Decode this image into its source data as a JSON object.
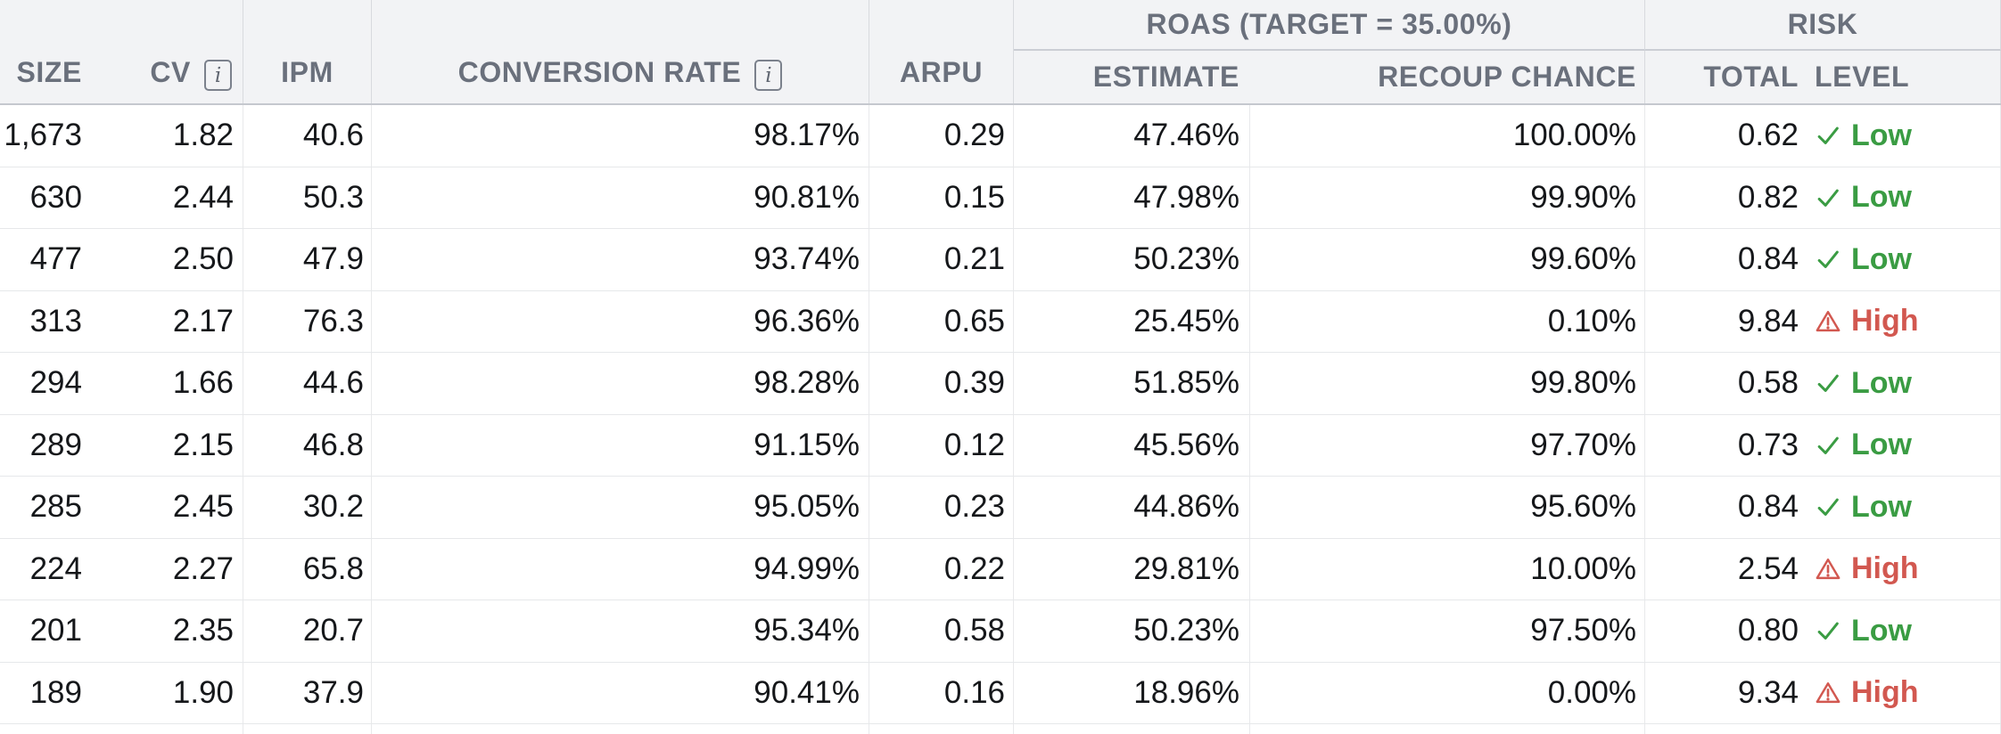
{
  "table": {
    "headers": {
      "size": "SIZE",
      "cv": "CV",
      "ipm": "IPM",
      "conversion_rate": "CONVERSION RATE",
      "arpu": "ARPU",
      "estimate": "ESTIMATE",
      "recoup_chance": "RECOUP CHANCE",
      "total": "TOTAL",
      "level": "LEVEL"
    },
    "group_headers": {
      "roas": "ROAS (TARGET = 35.00%)",
      "risk": "RISK"
    },
    "info_icon_glyph": "i",
    "info_icon_columns": [
      "cv",
      "conversion_rate"
    ],
    "risk_icons": {
      "low": "check-icon",
      "high": "warning-icon"
    },
    "rows": [
      {
        "size": "1,673",
        "cv": "1.82",
        "ipm": "40.6",
        "conversion_rate": "98.17%",
        "arpu": "0.29",
        "estimate": "47.46%",
        "recoup_chance": "100.00%",
        "risk_total": "0.62",
        "risk_level": "Low"
      },
      {
        "size": "630",
        "cv": "2.44",
        "ipm": "50.3",
        "conversion_rate": "90.81%",
        "arpu": "0.15",
        "estimate": "47.98%",
        "recoup_chance": "99.90%",
        "risk_total": "0.82",
        "risk_level": "Low"
      },
      {
        "size": "477",
        "cv": "2.50",
        "ipm": "47.9",
        "conversion_rate": "93.74%",
        "arpu": "0.21",
        "estimate": "50.23%",
        "recoup_chance": "99.60%",
        "risk_total": "0.84",
        "risk_level": "Low"
      },
      {
        "size": "313",
        "cv": "2.17",
        "ipm": "76.3",
        "conversion_rate": "96.36%",
        "arpu": "0.65",
        "estimate": "25.45%",
        "recoup_chance": "0.10%",
        "risk_total": "9.84",
        "risk_level": "High"
      },
      {
        "size": "294",
        "cv": "1.66",
        "ipm": "44.6",
        "conversion_rate": "98.28%",
        "arpu": "0.39",
        "estimate": "51.85%",
        "recoup_chance": "99.80%",
        "risk_total": "0.58",
        "risk_level": "Low"
      },
      {
        "size": "289",
        "cv": "2.15",
        "ipm": "46.8",
        "conversion_rate": "91.15%",
        "arpu": "0.12",
        "estimate": "45.56%",
        "recoup_chance": "97.70%",
        "risk_total": "0.73",
        "risk_level": "Low"
      },
      {
        "size": "285",
        "cv": "2.45",
        "ipm": "30.2",
        "conversion_rate": "95.05%",
        "arpu": "0.23",
        "estimate": "44.86%",
        "recoup_chance": "95.60%",
        "risk_total": "0.84",
        "risk_level": "Low"
      },
      {
        "size": "224",
        "cv": "2.27",
        "ipm": "65.8",
        "conversion_rate": "94.99%",
        "arpu": "0.22",
        "estimate": "29.81%",
        "recoup_chance": "10.00%",
        "risk_total": "2.54",
        "risk_level": "High"
      },
      {
        "size": "201",
        "cv": "2.35",
        "ipm": "20.7",
        "conversion_rate": "95.34%",
        "arpu": "0.58",
        "estimate": "50.23%",
        "recoup_chance": "97.50%",
        "risk_total": "0.80",
        "risk_level": "Low"
      },
      {
        "size": "189",
        "cv": "1.90",
        "ipm": "37.9",
        "conversion_rate": "90.41%",
        "arpu": "0.16",
        "estimate": "18.96%",
        "recoup_chance": "0.00%",
        "risk_total": "9.34",
        "risk_level": "High"
      }
    ]
  },
  "colors": {
    "low_green": "#3a9c43",
    "high_red": "#d25850",
    "header_bg": "#f2f3f5",
    "header_text": "#6a707c",
    "body_text": "#15171a"
  }
}
